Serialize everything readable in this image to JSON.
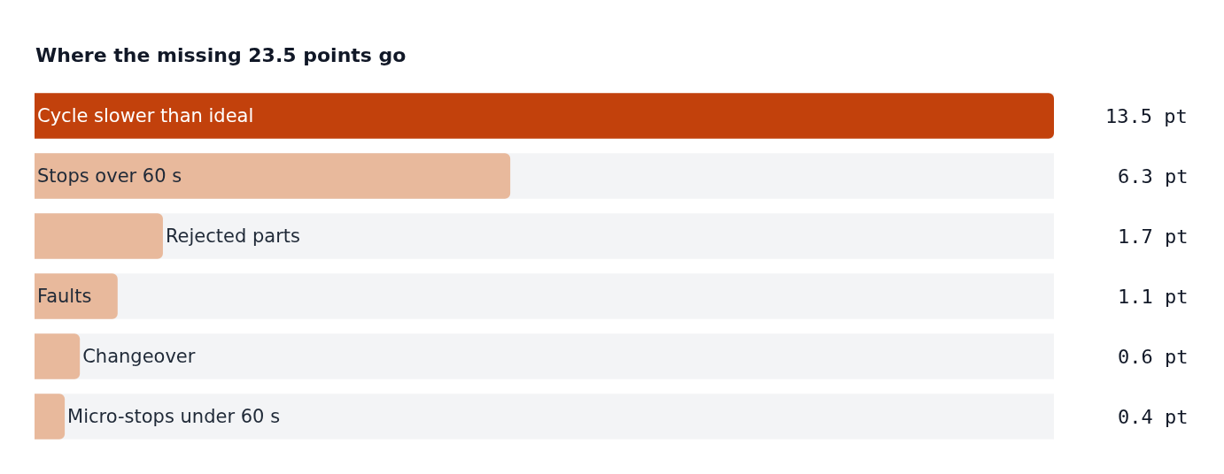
{
  "chart_data": {
    "type": "bar",
    "orientation": "horizontal",
    "title": "Where the missing 23.5 points go",
    "categories": [
      "Cycle slower than ideal",
      "Stops over 60 s",
      "Rejected parts",
      "Faults",
      "Changeover",
      "Micro-stops under 60 s"
    ],
    "values": [
      13.5,
      6.3,
      1.7,
      1.1,
      0.6,
      0.4
    ],
    "value_labels": [
      "13.5 pt",
      "6.3 pt",
      "1.7 pt",
      "1.1 pt",
      "0.6 pt",
      "0.4 pt"
    ],
    "colors": [
      "#c2410c",
      "#e8b99c",
      "#e8b99c",
      "#e8b99c",
      "#e8b99c",
      "#e8b99c"
    ],
    "xlim": [
      0,
      13.5
    ],
    "tick_labels": false,
    "grid": false,
    "legend": false
  }
}
